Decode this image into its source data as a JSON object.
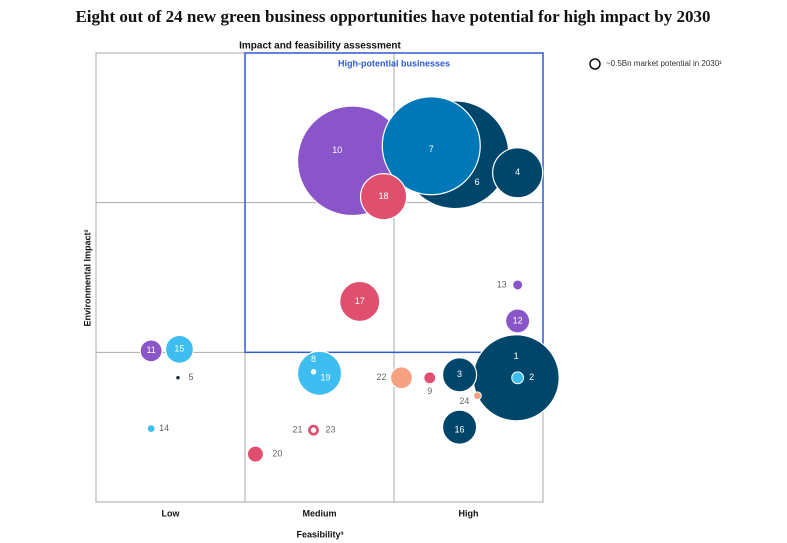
{
  "chart_data": {
    "type": "bubble",
    "title": "Eight out of 24 new green business opportunities have potential for high impact by 2030",
    "subtitle": "Impact and feasibility assessment",
    "x_label": "Feasibility³",
    "y_label": "Environmental Impact²",
    "xlim": [
      0,
      3
    ],
    "ylim": [
      0,
      3
    ],
    "xticks": [
      {
        "value": 0.5,
        "label": "Low"
      },
      {
        "value": 1.5,
        "label": "Medium"
      },
      {
        "value": 2.5,
        "label": "High"
      }
    ],
    "xgrid": [
      1,
      2
    ],
    "ygrid": [
      1,
      2
    ],
    "highlight": {
      "label": "High-potential businesses",
      "xlim": [
        1,
        3
      ],
      "ylim": [
        1,
        3
      ],
      "color": "#2f5bd3"
    },
    "legend": {
      "label": "~0.5Bn market potential in 2030¹",
      "size": 0.5
    },
    "points": [
      {
        "label": "10",
        "x": 1.72,
        "y": 2.28,
        "size": 60,
        "color": "#8a55c9"
      },
      {
        "label": "6",
        "x": 2.41,
        "y": 2.32,
        "size": 58,
        "color": "#00466b"
      },
      {
        "label": "7",
        "x": 2.25,
        "y": 2.38,
        "size": 48,
        "color": "#0077b6"
      },
      {
        "label": "4",
        "x": 2.83,
        "y": 2.2,
        "size": 12.5,
        "color": "#00466b"
      },
      {
        "label": "18",
        "x": 1.93,
        "y": 2.04,
        "size": 10.6,
        "color": "#e0506e"
      },
      {
        "label": "17",
        "x": 1.77,
        "y": 1.34,
        "size": 8,
        "color": "#e0506e"
      },
      {
        "label": "13",
        "x": 2.83,
        "y": 1.45,
        "size": 0.5,
        "color": "#8a55c9"
      },
      {
        "label": "12",
        "x": 2.83,
        "y": 1.21,
        "size": 2.9,
        "color": "#8a55c9"
      },
      {
        "label": "11",
        "x": 0.37,
        "y": 1.01,
        "size": 2.4,
        "color": "#8a55c9"
      },
      {
        "label": "15",
        "x": 0.56,
        "y": 1.02,
        "size": 3.9,
        "color": "#3ebdf0"
      },
      {
        "label": "5",
        "x": 0.55,
        "y": 0.83,
        "size": 0.1,
        "color": "#1a2a3a"
      },
      {
        "label": "1",
        "x": 2.82,
        "y": 0.83,
        "size": 37,
        "color": "#00466b"
      },
      {
        "label": "2",
        "x": 2.83,
        "y": 0.83,
        "size": 0.7,
        "color": "#3ebdf0"
      },
      {
        "label": "19",
        "x": 1.5,
        "y": 0.86,
        "size": 9.7,
        "color": "#3ebdf0"
      },
      {
        "label": "8",
        "x": 1.46,
        "y": 0.87,
        "size": 0.1,
        "color": "#ffffff"
      },
      {
        "label": "3",
        "x": 2.44,
        "y": 0.85,
        "size": 5.8,
        "color": "#00466b"
      },
      {
        "label": "22",
        "x": 2.05,
        "y": 0.83,
        "size": 2.4,
        "color": "#f7a183"
      },
      {
        "label": "9",
        "x": 2.24,
        "y": 0.83,
        "size": 0.7,
        "color": "#e0506e"
      },
      {
        "label": "24",
        "x": 2.56,
        "y": 0.71,
        "size": 0.3,
        "color": "#f7a183"
      },
      {
        "label": "16",
        "x": 2.44,
        "y": 0.5,
        "size": 5.8,
        "color": "#00466b"
      },
      {
        "label": "14",
        "x": 0.37,
        "y": 0.49,
        "size": 0.3,
        "color": "#3ebdf0"
      },
      {
        "label": "21",
        "x": 1.46,
        "y": 0.48,
        "size": 0.7,
        "color": "#e0506e"
      },
      {
        "label": "23",
        "x": 1.46,
        "y": 0.48,
        "size": 0.1,
        "color": "#ffffff"
      },
      {
        "label": "20",
        "x": 1.07,
        "y": 0.32,
        "size": 1.3,
        "color": "#e0506e"
      }
    ]
  }
}
